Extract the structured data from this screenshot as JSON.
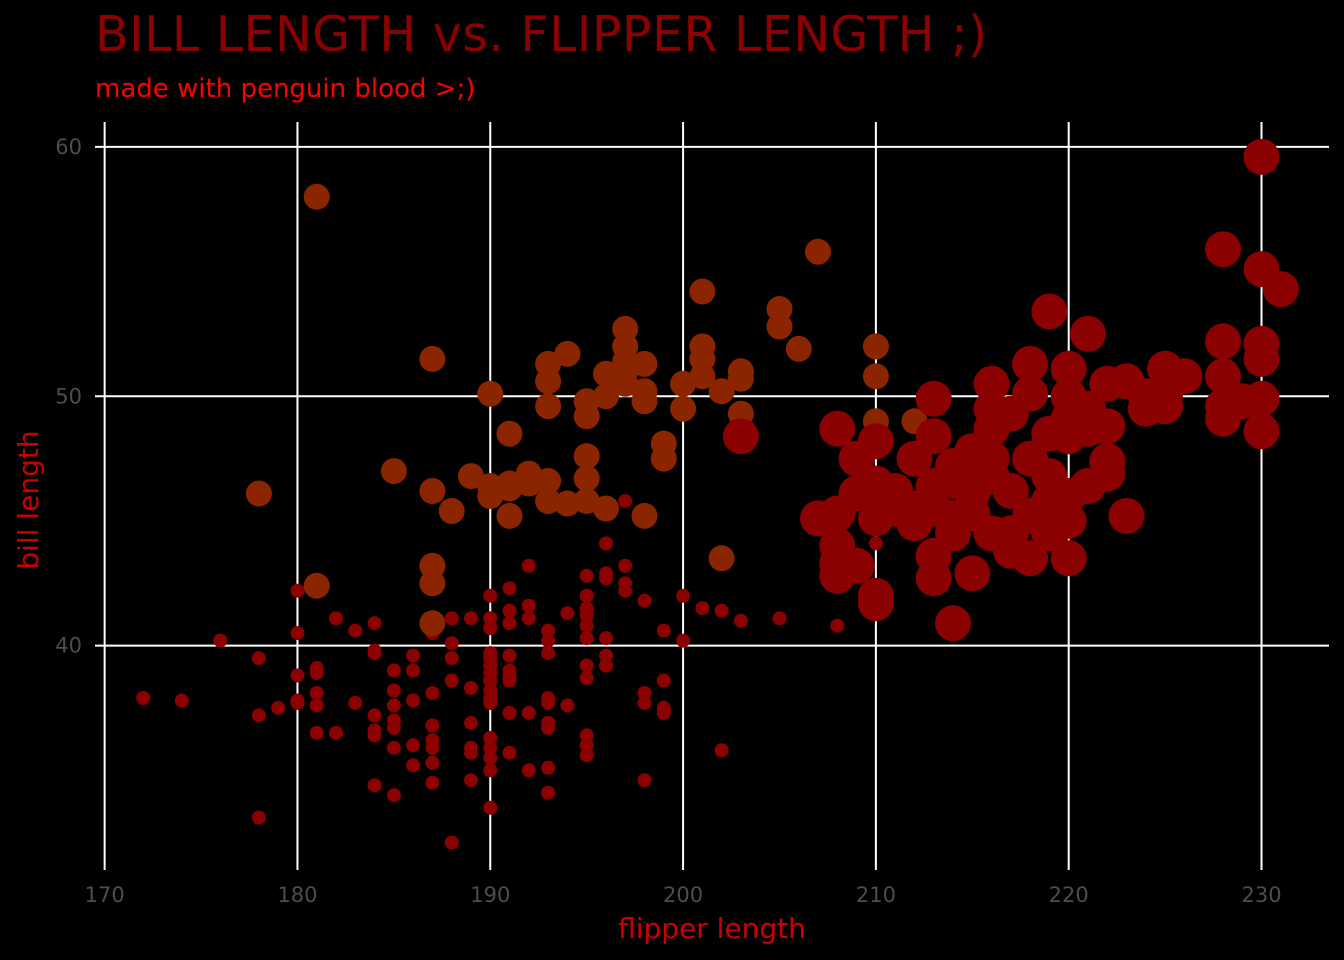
{
  "chart_data": {
    "type": "scatter",
    "title": "BILL LENGTH vs. FLIPPER LENGTH ;)",
    "subtitle": "made with penguin blood >;)",
    "xlabel": "flipper length",
    "ylabel": "bill length",
    "xlim": [
      169.5,
      233.5
    ],
    "ylim": [
      31,
      61
    ],
    "x_ticks": [
      "170",
      "180",
      "190",
      "200",
      "210",
      "220",
      "230"
    ],
    "y_ticks": [
      "40",
      "50",
      "60"
    ],
    "grid": true,
    "legend": "none",
    "colors": {
      "background": "#000000",
      "small": "#8b0000",
      "medium": "#8b2500",
      "large": "#8b0000",
      "title": "#8b0000",
      "subtitle": "#ff0000",
      "axis_title": "#cc0000",
      "grid": "#ffffff",
      "tick": "#4d4d4d"
    },
    "series": [
      {
        "color": "#8b0000",
        "size": "small",
        "points": [
          [
            172,
            37.9
          ],
          [
            174,
            37.8
          ],
          [
            176,
            40.2
          ],
          [
            178,
            39.5
          ],
          [
            178,
            37.2
          ],
          [
            178,
            33.1
          ],
          [
            179,
            37.5
          ],
          [
            180,
            42.2
          ],
          [
            180,
            40.5
          ],
          [
            180,
            38.8
          ],
          [
            180,
            37.8
          ],
          [
            180,
            37.7
          ],
          [
            181,
            39.1
          ],
          [
            181,
            38.9
          ],
          [
            181,
            38.1
          ],
          [
            181,
            37.6
          ],
          [
            181,
            36.5
          ],
          [
            182,
            41.1
          ],
          [
            182,
            36.5
          ],
          [
            183,
            40.6
          ],
          [
            183,
            37.7
          ],
          [
            184,
            40.9
          ],
          [
            184,
            39.8
          ],
          [
            184,
            39.7
          ],
          [
            184,
            37.2
          ],
          [
            184,
            36.6
          ],
          [
            184,
            36.4
          ],
          [
            184,
            34.4
          ],
          [
            185,
            39.0
          ],
          [
            185,
            38.2
          ],
          [
            185,
            37.6
          ],
          [
            185,
            37.0
          ],
          [
            185,
            36.7
          ],
          [
            185,
            35.9
          ],
          [
            185,
            34.0
          ],
          [
            186,
            39.6
          ],
          [
            186,
            39.0
          ],
          [
            186,
            37.8
          ],
          [
            186,
            36.0
          ],
          [
            186,
            35.2
          ],
          [
            187,
            40.5
          ],
          [
            187,
            38.1
          ],
          [
            187,
            36.8
          ],
          [
            187,
            36.2
          ],
          [
            187,
            35.9
          ],
          [
            187,
            35.3
          ],
          [
            187,
            34.5
          ],
          [
            188,
            41.1
          ],
          [
            188,
            40.1
          ],
          [
            188,
            39.5
          ],
          [
            188,
            38.6
          ],
          [
            188,
            32.1
          ],
          [
            189,
            41.1
          ],
          [
            189,
            38.3
          ],
          [
            189,
            36.9
          ],
          [
            189,
            35.9
          ],
          [
            189,
            35.7
          ],
          [
            189,
            34.6
          ],
          [
            190,
            42.0
          ],
          [
            190,
            41.1
          ],
          [
            190,
            40.7
          ],
          [
            190,
            39.7
          ],
          [
            190,
            39.5
          ],
          [
            190,
            39.2
          ],
          [
            190,
            38.9
          ],
          [
            190,
            38.6
          ],
          [
            190,
            38.2
          ],
          [
            190,
            37.9
          ],
          [
            190,
            37.7
          ],
          [
            190,
            36.3
          ],
          [
            190,
            35.9
          ],
          [
            190,
            35.5
          ],
          [
            190,
            35.0
          ],
          [
            190,
            33.5
          ],
          [
            191,
            42.3
          ],
          [
            191,
            41.4
          ],
          [
            191,
            40.9
          ],
          [
            191,
            39.6
          ],
          [
            191,
            39.0
          ],
          [
            191,
            38.8
          ],
          [
            191,
            38.6
          ],
          [
            191,
            37.3
          ],
          [
            191,
            35.7
          ],
          [
            192,
            43.2
          ],
          [
            192,
            41.6
          ],
          [
            192,
            41.1
          ],
          [
            192,
            37.3
          ],
          [
            192,
            35.0
          ],
          [
            193,
            40.6
          ],
          [
            193,
            40.2
          ],
          [
            193,
            39.7
          ],
          [
            193,
            37.9
          ],
          [
            193,
            37.7
          ],
          [
            193,
            36.9
          ],
          [
            193,
            36.7
          ],
          [
            193,
            35.1
          ],
          [
            193,
            34.1
          ],
          [
            194,
            41.3
          ],
          [
            194,
            37.6
          ],
          [
            195,
            42.8
          ],
          [
            195,
            42.0
          ],
          [
            195,
            41.5
          ],
          [
            195,
            41.2
          ],
          [
            195,
            40.8
          ],
          [
            195,
            40.3
          ],
          [
            195,
            39.2
          ],
          [
            195,
            38.7
          ],
          [
            195,
            36.4
          ],
          [
            195,
            36.0
          ],
          [
            195,
            35.6
          ],
          [
            196,
            44.1
          ],
          [
            196,
            42.9
          ],
          [
            196,
            42.7
          ],
          [
            196,
            40.3
          ],
          [
            196,
            39.6
          ],
          [
            196,
            39.2
          ],
          [
            197,
            45.8
          ],
          [
            197,
            43.2
          ],
          [
            197,
            42.5
          ],
          [
            197,
            42.2
          ],
          [
            198,
            41.8
          ],
          [
            198,
            38.1
          ],
          [
            198,
            37.7
          ],
          [
            198,
            34.6
          ],
          [
            199,
            40.6
          ],
          [
            199,
            38.6
          ],
          [
            199,
            37.5
          ],
          [
            199,
            37.3
          ],
          [
            200,
            42.0
          ],
          [
            200,
            40.2
          ],
          [
            201,
            41.5
          ],
          [
            202,
            41.4
          ],
          [
            202,
            35.8
          ],
          [
            203,
            41.0
          ],
          [
            205,
            41.1
          ],
          [
            208,
            40.8
          ],
          [
            210,
            44.1
          ]
        ]
      },
      {
        "color": "#8b2500",
        "size": "medium",
        "points": [
          [
            178,
            46.1
          ],
          [
            181,
            58.0
          ],
          [
            181,
            42.4
          ],
          [
            185,
            47.0
          ],
          [
            187,
            51.5
          ],
          [
            187,
            46.2
          ],
          [
            187,
            43.2
          ],
          [
            187,
            42.5
          ],
          [
            187,
            40.9
          ],
          [
            188,
            45.4
          ],
          [
            189,
            46.8
          ],
          [
            190,
            50.1
          ],
          [
            190,
            46.4
          ],
          [
            190,
            46.0
          ],
          [
            191,
            48.5
          ],
          [
            191,
            46.5
          ],
          [
            191,
            46.3
          ],
          [
            191,
            45.2
          ],
          [
            192,
            46.9
          ],
          [
            192,
            46.5
          ],
          [
            193,
            51.3
          ],
          [
            193,
            50.6
          ],
          [
            193,
            49.6
          ],
          [
            193,
            46.6
          ],
          [
            193,
            45.8
          ],
          [
            194,
            51.7
          ],
          [
            194,
            45.7
          ],
          [
            195,
            49.8
          ],
          [
            195,
            49.2
          ],
          [
            195,
            47.6
          ],
          [
            195,
            46.7
          ],
          [
            195,
            45.8
          ],
          [
            196,
            50.9
          ],
          [
            196,
            50.0
          ],
          [
            196,
            45.5
          ],
          [
            197,
            52.7
          ],
          [
            197,
            52.0
          ],
          [
            197,
            51.4
          ],
          [
            197,
            51.0
          ],
          [
            197,
            50.5
          ],
          [
            198,
            51.3
          ],
          [
            198,
            50.2
          ],
          [
            198,
            49.8
          ],
          [
            198,
            45.2
          ],
          [
            199,
            48.1
          ],
          [
            199,
            47.5
          ],
          [
            200,
            50.5
          ],
          [
            200,
            49.5
          ],
          [
            201,
            54.2
          ],
          [
            201,
            52.0
          ],
          [
            201,
            51.5
          ],
          [
            201,
            50.8
          ],
          [
            202,
            50.2
          ],
          [
            202,
            43.5
          ],
          [
            203,
            51.0
          ],
          [
            203,
            50.7
          ],
          [
            203,
            49.3
          ],
          [
            205,
            53.5
          ],
          [
            205,
            52.8
          ],
          [
            206,
            51.9
          ],
          [
            207,
            55.8
          ],
          [
            210,
            52.0
          ],
          [
            210,
            50.8
          ],
          [
            210,
            49.0
          ],
          [
            212,
            49.0
          ]
        ]
      },
      {
        "color": "#8b0000",
        "size": "large",
        "points": [
          [
            203,
            48.4
          ],
          [
            207,
            45.1
          ],
          [
            208,
            48.7
          ],
          [
            208,
            45.3
          ],
          [
            208,
            44.0
          ],
          [
            208,
            43.3
          ],
          [
            208,
            42.8
          ],
          [
            209,
            47.5
          ],
          [
            209,
            46.1
          ],
          [
            209,
            43.2
          ],
          [
            210,
            48.2
          ],
          [
            210,
            46.5
          ],
          [
            210,
            45.8
          ],
          [
            210,
            45.1
          ],
          [
            210,
            42.0
          ],
          [
            210,
            41.7
          ],
          [
            211,
            46.2
          ],
          [
            211,
            45.5
          ],
          [
            212,
            47.5
          ],
          [
            212,
            45.5
          ],
          [
            212,
            44.9
          ],
          [
            213,
            49.9
          ],
          [
            213,
            48.4
          ],
          [
            213,
            46.4
          ],
          [
            213,
            45.5
          ],
          [
            213,
            43.6
          ],
          [
            213,
            42.7
          ],
          [
            214,
            47.2
          ],
          [
            214,
            46.6
          ],
          [
            214,
            45.1
          ],
          [
            214,
            44.5
          ],
          [
            214,
            40.9
          ],
          [
            215,
            47.8
          ],
          [
            215,
            46.9
          ],
          [
            215,
            46.1
          ],
          [
            215,
            45.3
          ],
          [
            215,
            42.9
          ],
          [
            216,
            50.5
          ],
          [
            216,
            49.5
          ],
          [
            216,
            48.7
          ],
          [
            216,
            47.5
          ],
          [
            216,
            46.8
          ],
          [
            216,
            44.5
          ],
          [
            217,
            49.3
          ],
          [
            217,
            46.2
          ],
          [
            217,
            44.5
          ],
          [
            217,
            43.8
          ],
          [
            218,
            51.3
          ],
          [
            218,
            50.1
          ],
          [
            218,
            47.5
          ],
          [
            218,
            45.2
          ],
          [
            218,
            43.5
          ],
          [
            219,
            53.4
          ],
          [
            219,
            48.5
          ],
          [
            219,
            46.8
          ],
          [
            219,
            45.8
          ],
          [
            219,
            44.5
          ],
          [
            220,
            51.1
          ],
          [
            220,
            50.0
          ],
          [
            220,
            49.1
          ],
          [
            220,
            48.4
          ],
          [
            220,
            46.0
          ],
          [
            220,
            45.0
          ],
          [
            220,
            43.5
          ],
          [
            221,
            52.5
          ],
          [
            221,
            49.5
          ],
          [
            221,
            48.7
          ],
          [
            221,
            46.4
          ],
          [
            222,
            50.5
          ],
          [
            222,
            48.8
          ],
          [
            222,
            47.4
          ],
          [
            222,
            46.9
          ],
          [
            223,
            50.6
          ],
          [
            223,
            45.2
          ],
          [
            224,
            50.0
          ],
          [
            224,
            49.5
          ],
          [
            225,
            51.1
          ],
          [
            225,
            50.1
          ],
          [
            225,
            49.6
          ],
          [
            226,
            50.8
          ],
          [
            228,
            55.9
          ],
          [
            228,
            52.2
          ],
          [
            228,
            50.8
          ],
          [
            228,
            49.6
          ],
          [
            228,
            49.1
          ],
          [
            229,
            49.8
          ],
          [
            230,
            59.6
          ],
          [
            230,
            55.1
          ],
          [
            230,
            52.1
          ],
          [
            230,
            51.5
          ],
          [
            230,
            49.9
          ],
          [
            230,
            48.6
          ],
          [
            231,
            54.3
          ]
        ]
      }
    ]
  }
}
